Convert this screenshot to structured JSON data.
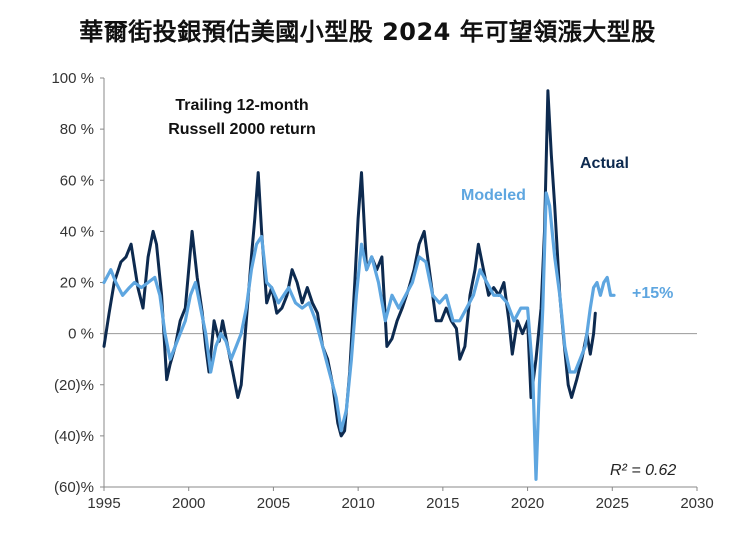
{
  "page": {
    "title": "華爾街投銀預估美國小型股 2024 年可望領漲大型股"
  },
  "chart_data": {
    "type": "line",
    "title": "Trailing 12-month Russell 2000 return",
    "title_lines": [
      "Trailing 12-month",
      "Russell 2000 return"
    ],
    "xlabel": "",
    "ylabel": "",
    "xlim": [
      1995,
      2030
    ],
    "ylim": [
      -60,
      100
    ],
    "x_ticks": [
      1995,
      2000,
      2005,
      2010,
      2015,
      2020,
      2025,
      2030
    ],
    "y_ticks": [
      100,
      80,
      60,
      40,
      20,
      0,
      -20,
      -40,
      -60
    ],
    "y_tick_labels": [
      "100 %",
      "80 %",
      "60 %",
      "40 %",
      "20 %",
      "0 %",
      "(20)%",
      "(40)%",
      "(60)%"
    ],
    "grid": false,
    "zero_line": true,
    "annotations": {
      "r_squared": "R² = 0.62",
      "modeled_end_label": "+15%"
    },
    "series": [
      {
        "name": "Actual",
        "color": "#0d2a4f",
        "points": [
          [
            1995.0,
            -5
          ],
          [
            1995.3,
            8
          ],
          [
            1995.6,
            20
          ],
          [
            1996.0,
            28
          ],
          [
            1996.3,
            30
          ],
          [
            1996.6,
            35
          ],
          [
            1997.0,
            18
          ],
          [
            1997.3,
            10
          ],
          [
            1997.6,
            30
          ],
          [
            1997.9,
            40
          ],
          [
            1998.1,
            35
          ],
          [
            1998.4,
            15
          ],
          [
            1998.7,
            -18
          ],
          [
            1998.9,
            -12
          ],
          [
            1999.2,
            -5
          ],
          [
            1999.5,
            5
          ],
          [
            1999.8,
            10
          ],
          [
            2000.0,
            25
          ],
          [
            2000.2,
            40
          ],
          [
            2000.5,
            22
          ],
          [
            2000.8,
            8
          ],
          [
            2001.0,
            -5
          ],
          [
            2001.2,
            -15
          ],
          [
            2001.5,
            5
          ],
          [
            2001.8,
            -3
          ],
          [
            2002.0,
            5
          ],
          [
            2002.3,
            -5
          ],
          [
            2002.6,
            -15
          ],
          [
            2002.9,
            -25
          ],
          [
            2003.1,
            -20
          ],
          [
            2003.4,
            5
          ],
          [
            2003.7,
            30
          ],
          [
            2003.9,
            45
          ],
          [
            2004.1,
            63
          ],
          [
            2004.3,
            40
          ],
          [
            2004.6,
            12
          ],
          [
            2004.9,
            18
          ],
          [
            2005.2,
            8
          ],
          [
            2005.5,
            10
          ],
          [
            2005.8,
            15
          ],
          [
            2006.1,
            25
          ],
          [
            2006.4,
            20
          ],
          [
            2006.7,
            12
          ],
          [
            2007.0,
            18
          ],
          [
            2007.3,
            12
          ],
          [
            2007.6,
            8
          ],
          [
            2007.9,
            -5
          ],
          [
            2008.2,
            -10
          ],
          [
            2008.5,
            -20
          ],
          [
            2008.8,
            -35
          ],
          [
            2009.0,
            -40
          ],
          [
            2009.2,
            -38
          ],
          [
            2009.5,
            -15
          ],
          [
            2009.8,
            20
          ],
          [
            2010.0,
            45
          ],
          [
            2010.2,
            63
          ],
          [
            2010.5,
            25
          ],
          [
            2010.8,
            30
          ],
          [
            2011.1,
            25
          ],
          [
            2011.4,
            30
          ],
          [
            2011.7,
            -5
          ],
          [
            2012.0,
            -2
          ],
          [
            2012.3,
            5
          ],
          [
            2012.6,
            10
          ],
          [
            2013.0,
            18
          ],
          [
            2013.3,
            25
          ],
          [
            2013.6,
            35
          ],
          [
            2013.9,
            40
          ],
          [
            2014.2,
            25
          ],
          [
            2014.6,
            5
          ],
          [
            2014.9,
            5
          ],
          [
            2015.2,
            10
          ],
          [
            2015.5,
            5
          ],
          [
            2015.8,
            2
          ],
          [
            2016.0,
            -10
          ],
          [
            2016.3,
            -5
          ],
          [
            2016.6,
            15
          ],
          [
            2016.9,
            25
          ],
          [
            2017.1,
            35
          ],
          [
            2017.4,
            25
          ],
          [
            2017.7,
            15
          ],
          [
            2018.0,
            18
          ],
          [
            2018.3,
            15
          ],
          [
            2018.6,
            20
          ],
          [
            2018.9,
            5
          ],
          [
            2019.1,
            -8
          ],
          [
            2019.4,
            5
          ],
          [
            2019.7,
            0
          ],
          [
            2020.0,
            5
          ],
          [
            2020.2,
            -25
          ],
          [
            2020.5,
            -10
          ],
          [
            2020.8,
            10
          ],
          [
            2021.0,
            40
          ],
          [
            2021.2,
            95
          ],
          [
            2021.4,
            70
          ],
          [
            2021.6,
            50
          ],
          [
            2021.9,
            15
          ],
          [
            2022.1,
            0
          ],
          [
            2022.4,
            -20
          ],
          [
            2022.6,
            -25
          ],
          [
            2022.9,
            -18
          ],
          [
            2023.2,
            -10
          ],
          [
            2023.5,
            0
          ],
          [
            2023.7,
            -8
          ],
          [
            2023.9,
            0
          ],
          [
            2024.0,
            8
          ]
        ]
      },
      {
        "name": "Modeled",
        "color": "#5ea6e0",
        "points": [
          [
            1995.0,
            20
          ],
          [
            1995.4,
            25
          ],
          [
            1995.7,
            20
          ],
          [
            1996.1,
            15
          ],
          [
            1996.5,
            18
          ],
          [
            1996.8,
            20
          ],
          [
            1997.2,
            18
          ],
          [
            1997.6,
            20
          ],
          [
            1998.0,
            22
          ],
          [
            1998.3,
            15
          ],
          [
            1998.6,
            0
          ],
          [
            1998.9,
            -10
          ],
          [
            1999.2,
            -5
          ],
          [
            1999.5,
            0
          ],
          [
            1999.8,
            5
          ],
          [
            2000.1,
            15
          ],
          [
            2000.4,
            20
          ],
          [
            2000.7,
            10
          ],
          [
            2001.0,
            0
          ],
          [
            2001.3,
            -15
          ],
          [
            2001.6,
            -5
          ],
          [
            2001.9,
            0
          ],
          [
            2002.2,
            -3
          ],
          [
            2002.5,
            -10
          ],
          [
            2002.8,
            -5
          ],
          [
            2003.1,
            0
          ],
          [
            2003.4,
            10
          ],
          [
            2003.7,
            25
          ],
          [
            2004.0,
            35
          ],
          [
            2004.3,
            38
          ],
          [
            2004.6,
            20
          ],
          [
            2004.9,
            18
          ],
          [
            2005.3,
            12
          ],
          [
            2005.6,
            15
          ],
          [
            2005.9,
            18
          ],
          [
            2006.3,
            12
          ],
          [
            2006.7,
            10
          ],
          [
            2007.1,
            12
          ],
          [
            2007.5,
            5
          ],
          [
            2007.9,
            -5
          ],
          [
            2008.3,
            -15
          ],
          [
            2008.7,
            -25
          ],
          [
            2009.0,
            -38
          ],
          [
            2009.3,
            -30
          ],
          [
            2009.6,
            -10
          ],
          [
            2009.9,
            15
          ],
          [
            2010.2,
            35
          ],
          [
            2010.5,
            25
          ],
          [
            2010.8,
            30
          ],
          [
            2011.2,
            20
          ],
          [
            2011.6,
            5
          ],
          [
            2012.0,
            15
          ],
          [
            2012.4,
            10
          ],
          [
            2012.8,
            15
          ],
          [
            2013.2,
            20
          ],
          [
            2013.6,
            30
          ],
          [
            2014.0,
            28
          ],
          [
            2014.4,
            15
          ],
          [
            2014.8,
            12
          ],
          [
            2015.2,
            15
          ],
          [
            2015.6,
            5
          ],
          [
            2016.0,
            5
          ],
          [
            2016.4,
            10
          ],
          [
            2016.8,
            15
          ],
          [
            2017.2,
            25
          ],
          [
            2017.6,
            20
          ],
          [
            2018.0,
            15
          ],
          [
            2018.4,
            15
          ],
          [
            2018.8,
            12
          ],
          [
            2019.2,
            5
          ],
          [
            2019.6,
            10
          ],
          [
            2020.0,
            10
          ],
          [
            2020.3,
            -15
          ],
          [
            2020.5,
            -57
          ],
          [
            2020.7,
            -20
          ],
          [
            2020.9,
            10
          ],
          [
            2021.1,
            55
          ],
          [
            2021.3,
            50
          ],
          [
            2021.6,
            30
          ],
          [
            2021.9,
            15
          ],
          [
            2022.2,
            -5
          ],
          [
            2022.5,
            -15
          ],
          [
            2022.8,
            -15
          ],
          [
            2023.1,
            -10
          ],
          [
            2023.4,
            -5
          ],
          [
            2023.7,
            10
          ],
          [
            2023.9,
            18
          ],
          [
            2024.1,
            20
          ],
          [
            2024.3,
            15
          ],
          [
            2024.5,
            20
          ],
          [
            2024.7,
            22
          ],
          [
            2024.9,
            15
          ],
          [
            2025.1,
            15
          ]
        ]
      }
    ]
  }
}
